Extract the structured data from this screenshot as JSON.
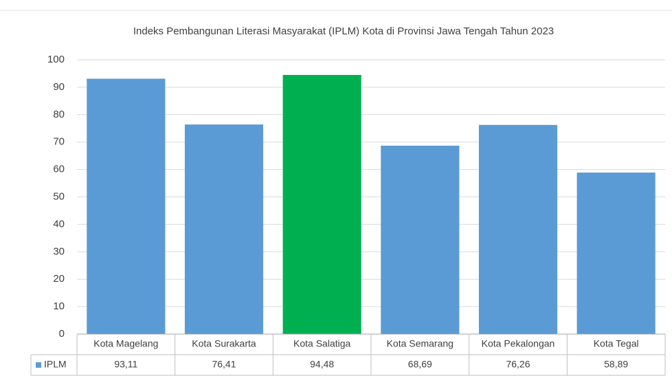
{
  "chart_data": {
    "type": "bar",
    "title": "Indeks Pembangunan Literasi Masyarakat (IPLM) Kota di Provinsi Jawa Tengah Tahun 2023",
    "categories": [
      "Kota Magelang",
      "Kota Surakarta",
      "Kota Salatiga",
      "Kota Semarang",
      "Kota Pekalongan",
      "Kota Tegal"
    ],
    "series": [
      {
        "name": "IPLM",
        "color": "#5b9bd5",
        "values": [
          93.11,
          76.41,
          94.48,
          68.69,
          76.26,
          58.89
        ],
        "value_labels": [
          "93,11",
          "76,41",
          "94,48",
          "68,69",
          "76,26",
          "58,89"
        ],
        "colors": [
          "#5b9bd5",
          "#5b9bd5",
          "#00b050",
          "#5b9bd5",
          "#5b9bd5",
          "#5b9bd5"
        ]
      }
    ],
    "ylim": [
      0,
      100
    ],
    "yticks": [
      0,
      10,
      20,
      30,
      40,
      50,
      60,
      70,
      80,
      90,
      100
    ],
    "grid": true,
    "data_table": true
  }
}
